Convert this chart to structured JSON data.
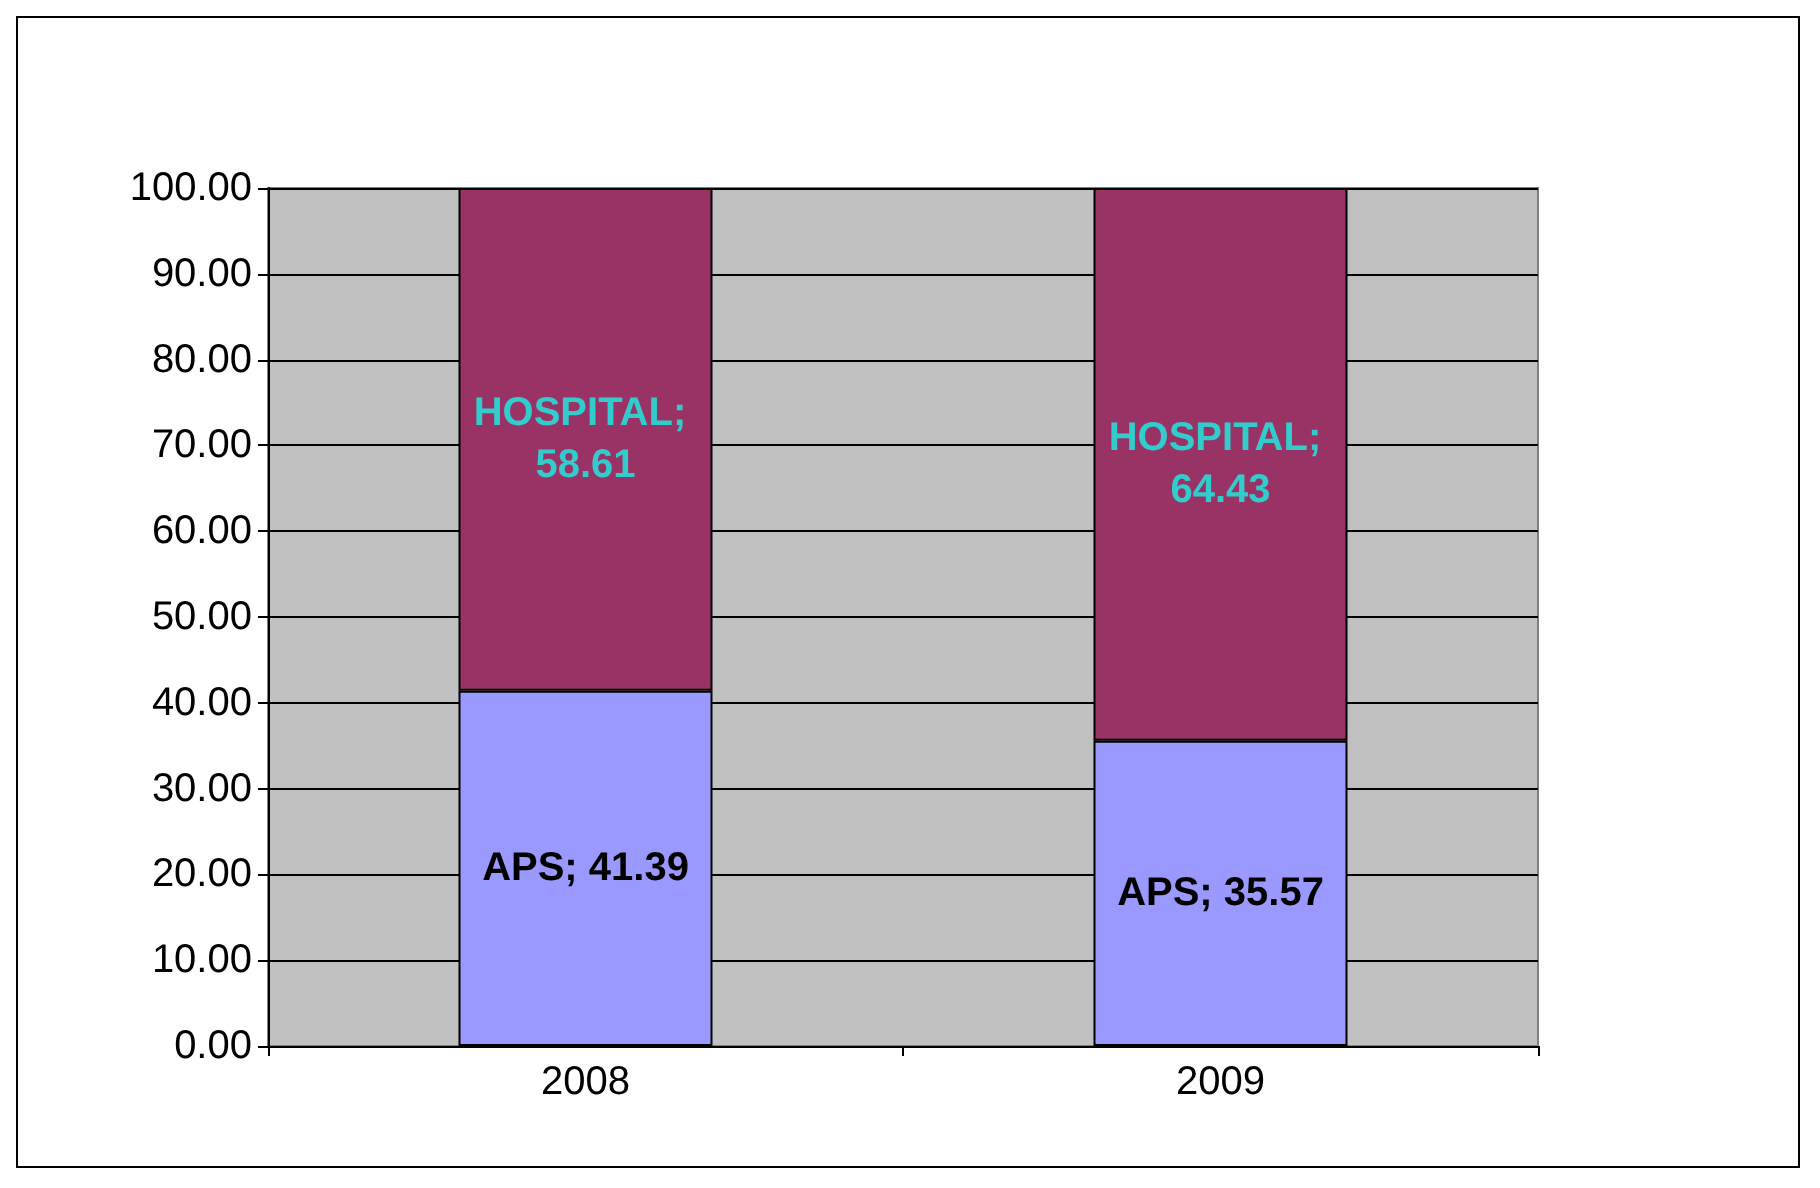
{
  "chart_data": {
    "type": "bar",
    "stacked": true,
    "categories": [
      "2008",
      "2009"
    ],
    "series": [
      {
        "color": "#9999ff",
        "values": [
          41.39,
          35.57
        ],
        "value_labels": [
          "APS; 41.39",
          "APS; 35.57"
        ]
      },
      {
        "color": "#993366",
        "values": [
          58.61,
          64.43
        ],
        "value_labels": [
          "HOSPITAL; 58.61",
          "HOSPITAL; 64.43"
        ]
      }
    ],
    "ylim": [
      0,
      100
    ],
    "yticks": [
      {
        "value": 0,
        "label": "0.00"
      },
      {
        "value": 10,
        "label": "10.00"
      },
      {
        "value": 20,
        "label": "20.00"
      },
      {
        "value": 30,
        "label": "30.00"
      },
      {
        "value": 40,
        "label": "40.00"
      },
      {
        "value": 50,
        "label": "50.00"
      },
      {
        "value": 60,
        "label": "60.00"
      },
      {
        "value": 70,
        "label": "70.00"
      },
      {
        "value": 80,
        "label": "80.00"
      },
      {
        "value": 90,
        "label": "90.00"
      },
      {
        "value": 100,
        "label": "100.00"
      }
    ],
    "grid": true
  }
}
